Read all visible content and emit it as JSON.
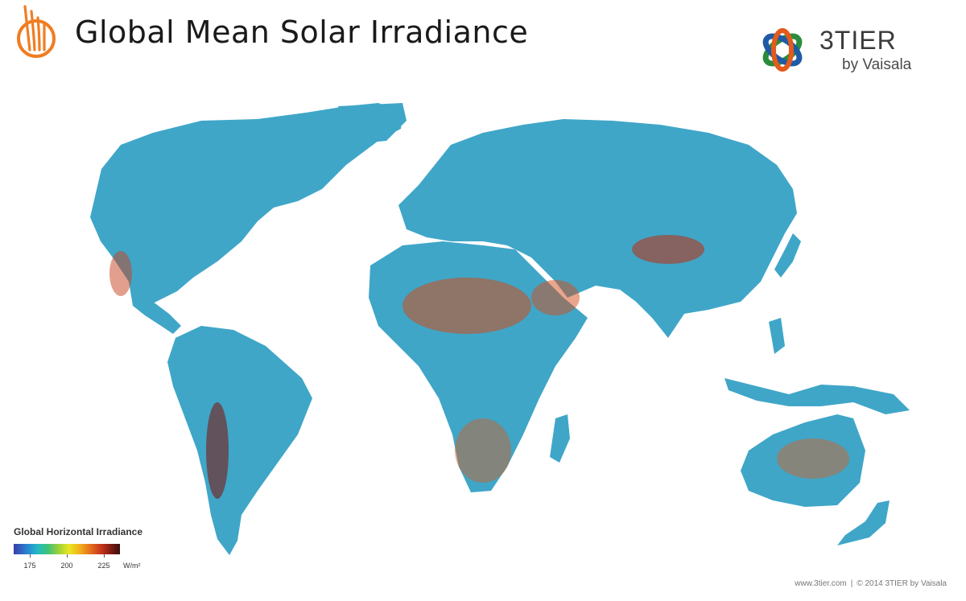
{
  "header": {
    "title": "Global Mean Solar Irradiance",
    "logo_icon": "sun-rays-icon",
    "logo_color": "#f07d22"
  },
  "brand": {
    "name": "3TIER",
    "sub": "by Vaisala",
    "mark_icon": "orbit-mark-icon",
    "colors": [
      "#2a8c3c",
      "#1f5aa6",
      "#e25a1c"
    ]
  },
  "legend": {
    "title": "Global Horizontal Irradiance",
    "ticks": [
      "175",
      "200",
      "225"
    ],
    "unit": "W/m²",
    "scale_colors": [
      "#3a3ea8",
      "#2a7fd0",
      "#22b8c8",
      "#3cc27a",
      "#9ad13a",
      "#e8e620",
      "#f2b21c",
      "#e4701c",
      "#c8361e",
      "#7a1a12",
      "#3b0e0a"
    ]
  },
  "footer": {
    "website": "www.3tier.com",
    "separator": "|",
    "copyright": "© 2014 3TIER by Vaisala"
  }
}
